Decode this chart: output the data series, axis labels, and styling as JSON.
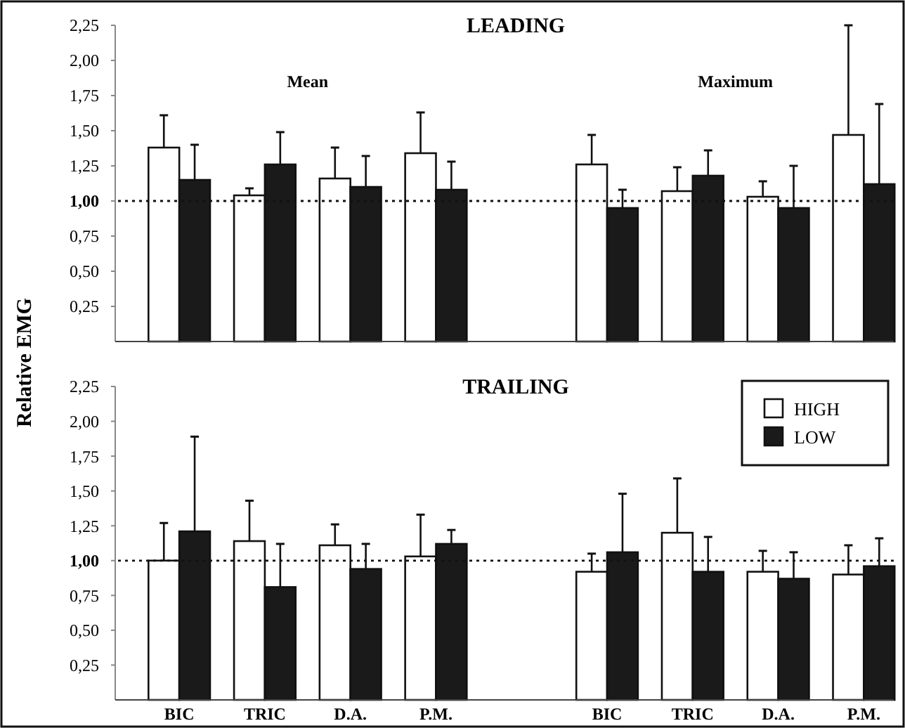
{
  "chart_data": [
    {
      "type": "bar",
      "title": "LEADING",
      "ylabel": "Relative EMG",
      "annotations": [
        "Mean",
        "Maximum"
      ],
      "categories": [
        null,
        null,
        null,
        null,
        null,
        null,
        null,
        null,
        null
      ],
      "series": [
        {
          "color": "#ffffff",
          "values": [
            1.38,
            1.04,
            1.16,
            1.34,
            null,
            1.26,
            1.07,
            1.03,
            1.47
          ],
          "errors": [
            [
              1.38,
              1.61
            ],
            [
              1.04,
              1.09
            ],
            [
              1.16,
              1.38
            ],
            [
              1.34,
              1.63
            ],
            null,
            [
              1.26,
              1.47
            ],
            [
              1.07,
              1.24
            ],
            [
              1.03,
              1.14
            ],
            [
              1.47,
              2.25
            ]
          ]
        },
        {
          "color": "#1a1a1a",
          "values": [
            1.15,
            1.26,
            1.1,
            1.08,
            null,
            0.95,
            1.18,
            0.95,
            1.12
          ],
          "errors": [
            [
              1.15,
              1.4
            ],
            [
              1.26,
              1.49
            ],
            [
              1.1,
              1.32
            ],
            [
              1.08,
              1.28
            ],
            null,
            [
              0.95,
              1.08
            ],
            [
              1.18,
              1.36
            ],
            [
              0.95,
              1.25
            ],
            [
              1.12,
              1.69
            ]
          ]
        }
      ],
      "ylim": [
        0,
        2.25
      ],
      "yticks": [
        {
          "value": 0.25,
          "label": "0,25"
        },
        {
          "value": 0.5,
          "label": "0,50"
        },
        {
          "value": 0.75,
          "label": "0,75"
        },
        {
          "value": 1,
          "label": "1,00"
        },
        {
          "value": 1.25,
          "label": "1,25"
        },
        {
          "value": 1.5,
          "label": "1,50"
        },
        {
          "value": 1.75,
          "label": "1,75"
        },
        {
          "value": 2,
          "label": "2,00"
        },
        {
          "value": 2.25,
          "label": "2,25"
        }
      ],
      "tick_labels": "y",
      "ref_lines": [
        {
          "axis": "y",
          "value": 1,
          "line_style": "dotted"
        }
      ],
      "grid": false,
      "legend": false
    },
    {
      "type": "bar",
      "title": "TRAILING",
      "categories": [
        "BIC",
        "TRIC",
        "D.A.",
        "P.M.",
        null,
        "BIC",
        "TRIC",
        "D.A.",
        "P.M."
      ],
      "series": [
        {
          "name": "HIGH",
          "color": "#ffffff",
          "values": [
            1.0,
            1.14,
            1.11,
            1.03,
            null,
            0.92,
            1.2,
            0.92,
            0.9
          ],
          "errors": [
            [
              1.0,
              1.27
            ],
            [
              1.14,
              1.43
            ],
            [
              1.11,
              1.26
            ],
            [
              1.03,
              1.33
            ],
            null,
            [
              0.92,
              1.05
            ],
            [
              1.2,
              1.59
            ],
            [
              0.92,
              1.07
            ],
            [
              0.9,
              1.11
            ]
          ]
        },
        {
          "name": "LOW",
          "color": "#1a1a1a",
          "values": [
            1.21,
            0.81,
            0.94,
            1.12,
            null,
            1.06,
            0.92,
            0.87,
            0.96
          ],
          "errors": [
            [
              1.21,
              1.89
            ],
            [
              0.81,
              1.12
            ],
            [
              0.94,
              1.12
            ],
            [
              1.12,
              1.22
            ],
            null,
            [
              1.06,
              1.48
            ],
            [
              0.92,
              1.17
            ],
            [
              0.87,
              1.06
            ],
            [
              0.96,
              1.16
            ]
          ]
        }
      ],
      "ylim": [
        0,
        2.25
      ],
      "yticks": [
        {
          "value": 0.25,
          "label": "0,25"
        },
        {
          "value": 0.5,
          "label": "0,50"
        },
        {
          "value": 0.75,
          "label": "0,75"
        },
        {
          "value": 1,
          "label": "1,00"
        },
        {
          "value": 1.25,
          "label": "1,25"
        },
        {
          "value": 1.5,
          "label": "1,50"
        },
        {
          "value": 1.75,
          "label": "1,75"
        },
        {
          "value": 2,
          "label": "2,00"
        },
        {
          "value": 2.25,
          "label": "2,25"
        }
      ],
      "ref_lines": [
        {
          "axis": "y",
          "value": 1,
          "line_style": "dotted"
        }
      ],
      "grid": false,
      "legend": "top right"
    }
  ]
}
